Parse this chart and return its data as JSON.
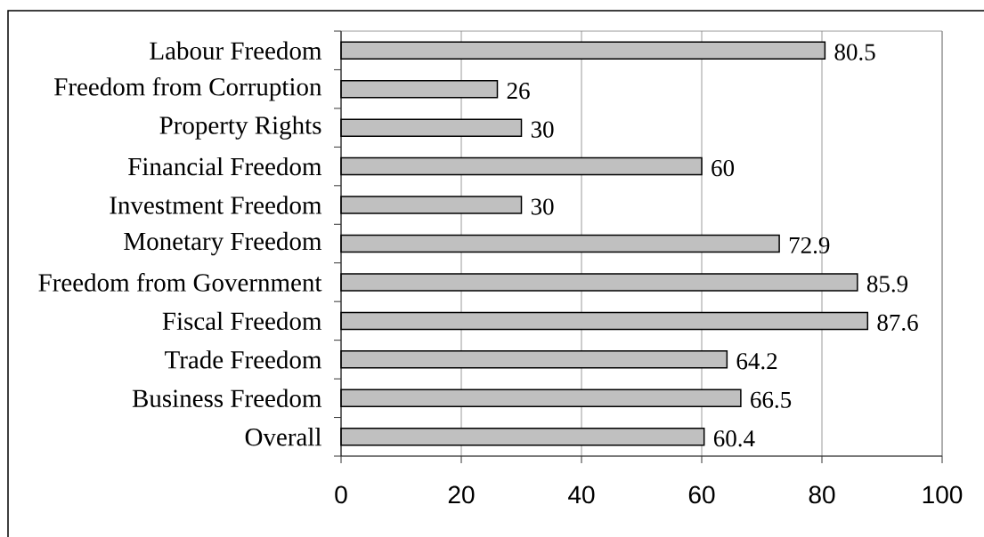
{
  "chart_data": {
    "type": "bar",
    "orientation": "horizontal",
    "categories": [
      "Labour Freedom",
      "Freedom from Corruption",
      "Property Rights",
      "Financial Freedom",
      "Investment Freedom",
      "Monetary Freedom",
      "Freedom from Government",
      "Fiscal Freedom",
      "Trade Freedom",
      "Business Freedom",
      "Overall"
    ],
    "values": [
      80.5,
      26,
      30,
      60,
      30,
      72.9,
      85.9,
      87.6,
      64.2,
      66.5,
      60.4
    ],
    "color": "#c0c0c0",
    "xlim": [
      0,
      100
    ],
    "xticks": [
      0,
      20,
      40,
      60,
      80,
      100
    ],
    "grid": "x",
    "data_labels": true
  }
}
